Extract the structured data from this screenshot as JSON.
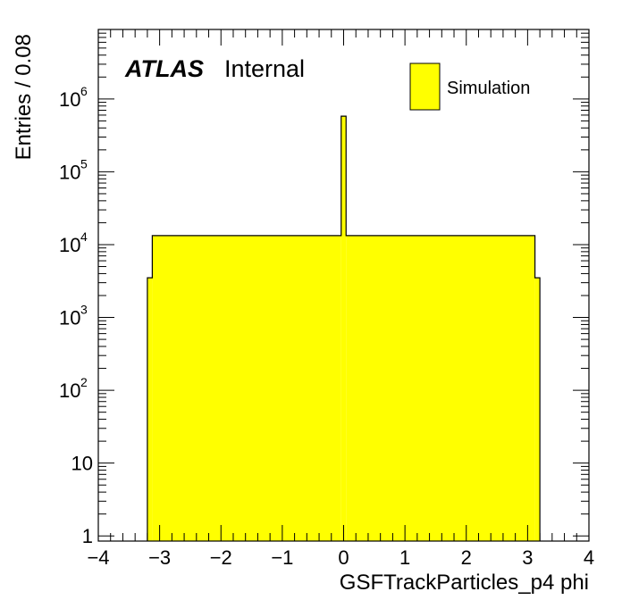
{
  "chart_data": {
    "type": "bar",
    "xlabel": "GSFTrackParticles_p4 phi",
    "ylabel": "Entries / 0.08",
    "xlim": [
      -4,
      4
    ],
    "ylim": [
      0.85,
      9000000
    ],
    "yscale": "log",
    "bin_width": 0.08,
    "grid": false,
    "legend_position": "top-right",
    "fill_color": "#ffff00",
    "line_color": "#000000",
    "x_ticks": [
      -4,
      -3,
      -2,
      -1,
      0,
      1,
      2,
      3,
      4
    ],
    "x_tick_labels": [
      "−4",
      "−3",
      "−2",
      "−1",
      "0",
      "1",
      "2",
      "3",
      "4"
    ],
    "y_ticks": [
      {
        "value": 1,
        "base": "1",
        "exp": ""
      },
      {
        "value": 10,
        "base": "10",
        "exp": ""
      },
      {
        "value": 100,
        "base": "10",
        "exp": "2"
      },
      {
        "value": 1000,
        "base": "10",
        "exp": "3"
      },
      {
        "value": 10000,
        "base": "10",
        "exp": "4"
      },
      {
        "value": 100000,
        "base": "10",
        "exp": "5"
      },
      {
        "value": 1000000,
        "base": "10",
        "exp": "6"
      }
    ],
    "series": [
      {
        "name": "Simulation",
        "bins": [
          {
            "x0": -3.2,
            "x1": -3.12,
            "y": 3500
          },
          {
            "x0": -3.12,
            "x1": -0.04,
            "y": 13300
          },
          {
            "x0": -0.04,
            "x1": 0.04,
            "y": 580000
          },
          {
            "x0": 0.04,
            "x1": 3.12,
            "y": 13300
          },
          {
            "x0": 3.12,
            "x1": 3.2,
            "y": 3500
          }
        ]
      }
    ],
    "labels": {
      "atlas": "ATLAS",
      "status": "Internal"
    }
  }
}
